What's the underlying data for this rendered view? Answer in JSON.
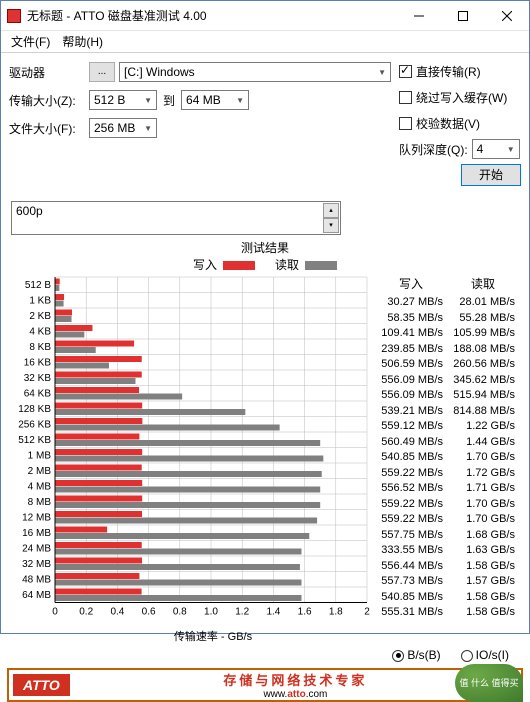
{
  "window": {
    "title": "无标题 - ATTO 磁盘基准测试 4.00"
  },
  "menu": {
    "file": "文件(F)",
    "help": "帮助(H)"
  },
  "controls": {
    "drive_label": "驱动器",
    "drive_btn": "...",
    "drive_value": "[C:] Windows",
    "io_size_label": "传输大小(Z):",
    "io_from": "512 B",
    "io_to_label": "到",
    "io_to": "64 MB",
    "file_size_label": "文件大小(F):",
    "file_size": "256 MB",
    "direct_io": "直接传输(R)",
    "bypass_cache": "绕过写入缓存(W)",
    "verify": "校验数据(V)",
    "queue_depth_label": "队列深度(Q):",
    "queue_depth": "4",
    "start": "开始"
  },
  "textinput": {
    "value": "600p"
  },
  "chart": {
    "title": "测试结果",
    "legend_write": "写入",
    "legend_read": "读取",
    "axis_label": "传输速率 - GB/s",
    "xmax": 2.0,
    "xticks": [
      "0",
      "0.2",
      "0.4",
      "0.6",
      "0.8",
      "1.0",
      "1.2",
      "1.4",
      "1.6",
      "1.8",
      "2"
    ],
    "colors": {
      "write": "#e03030",
      "read": "#808080",
      "grid": "#bbbbbb",
      "axis": "#000000"
    },
    "categories": [
      "512 B",
      "1 KB",
      "2 KB",
      "4 KB",
      "8 KB",
      "16 KB",
      "32 KB",
      "64 KB",
      "128 KB",
      "256 KB",
      "512 KB",
      "1 MB",
      "2 MB",
      "4 MB",
      "8 MB",
      "12 MB",
      "16 MB",
      "24 MB",
      "32 MB",
      "48 MB",
      "64 MB"
    ],
    "write_vals": [
      0.03,
      0.058,
      0.109,
      0.24,
      0.507,
      0.556,
      0.556,
      0.539,
      0.559,
      0.56,
      0.541,
      0.559,
      0.556,
      0.559,
      0.559,
      0.558,
      0.334,
      0.556,
      0.558,
      0.541,
      0.555
    ],
    "read_vals": [
      0.028,
      0.055,
      0.106,
      0.188,
      0.261,
      0.346,
      0.516,
      0.815,
      1.22,
      1.44,
      1.7,
      1.72,
      1.71,
      1.7,
      1.7,
      1.68,
      1.63,
      1.58,
      1.57,
      1.58,
      1.58
    ]
  },
  "results": {
    "hdr_write": "写入",
    "hdr_read": "读取",
    "rows": [
      {
        "w": "30.27 MB/s",
        "r": "28.01 MB/s"
      },
      {
        "w": "58.35 MB/s",
        "r": "55.28 MB/s"
      },
      {
        "w": "109.41 MB/s",
        "r": "105.99 MB/s"
      },
      {
        "w": "239.85 MB/s",
        "r": "188.08 MB/s"
      },
      {
        "w": "506.59 MB/s",
        "r": "260.56 MB/s"
      },
      {
        "w": "556.09 MB/s",
        "r": "345.62 MB/s"
      },
      {
        "w": "556.09 MB/s",
        "r": "515.94 MB/s"
      },
      {
        "w": "539.21 MB/s",
        "r": "814.88 MB/s"
      },
      {
        "w": "559.12 MB/s",
        "r": "1.22 GB/s"
      },
      {
        "w": "560.49 MB/s",
        "r": "1.44 GB/s"
      },
      {
        "w": "540.85 MB/s",
        "r": "1.70 GB/s"
      },
      {
        "w": "559.22 MB/s",
        "r": "1.72 GB/s"
      },
      {
        "w": "556.52 MB/s",
        "r": "1.71 GB/s"
      },
      {
        "w": "559.22 MB/s",
        "r": "1.70 GB/s"
      },
      {
        "w": "559.22 MB/s",
        "r": "1.70 GB/s"
      },
      {
        "w": "557.75 MB/s",
        "r": "1.68 GB/s"
      },
      {
        "w": "333.55 MB/s",
        "r": "1.63 GB/s"
      },
      {
        "w": "556.44 MB/s",
        "r": "1.58 GB/s"
      },
      {
        "w": "557.73 MB/s",
        "r": "1.57 GB/s"
      },
      {
        "w": "540.85 MB/s",
        "r": "1.58 GB/s"
      },
      {
        "w": "555.31 MB/s",
        "r": "1.58 GB/s"
      }
    ]
  },
  "radio": {
    "bps": "B/s(B)",
    "iops": "IO/s(I)"
  },
  "footer": {
    "logo": "ATTO",
    "cn": "存储与网络技术专家",
    "url_pre": "www.",
    "url_mid": "atto",
    "url_post": ".com",
    "watermark": "值 什么\n值得买"
  }
}
